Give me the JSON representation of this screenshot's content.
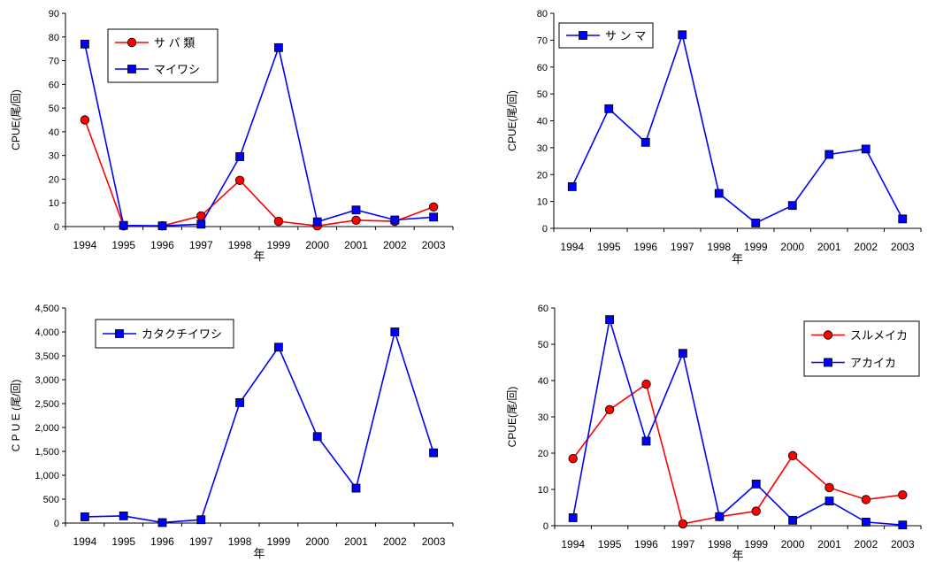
{
  "chart_data": [
    {
      "type": "line",
      "x": [
        "1994",
        "1995",
        "1996",
        "1997",
        "1998",
        "1999",
        "2000",
        "2001",
        "2002",
        "2003"
      ],
      "xlabel": "年",
      "ylabel": "CPUE(尾/回)",
      "ylim": [
        0,
        90
      ],
      "yticks": [
        "0",
        "10",
        "20",
        "30",
        "40",
        "50",
        "60",
        "70",
        "80",
        "90"
      ],
      "legend_position": "top-left",
      "series": [
        {
          "name": "サ バ 類",
          "color": "#ff0000",
          "marker": "circle",
          "values": [
            45,
            0.3,
            0.3,
            4.5,
            19.5,
            2.2,
            0.3,
            2.7,
            2.2,
            8.3
          ]
        },
        {
          "name": "マイワシ",
          "color": "#0000ff",
          "marker": "square",
          "values": [
            77,
            0.5,
            0.3,
            1,
            29.5,
            75.5,
            2,
            7,
            2.8,
            4
          ]
        }
      ]
    },
    {
      "type": "line",
      "x": [
        "1994",
        "1995",
        "1996",
        "1997",
        "1998",
        "1999",
        "2000",
        "2001",
        "2002",
        "2003"
      ],
      "xlabel": "年",
      "ylabel": "CPUE(尾/回)",
      "ylim": [
        0,
        80
      ],
      "yticks": [
        "0",
        "10",
        "20",
        "30",
        "40",
        "50",
        "60",
        "70",
        "80"
      ],
      "legend_position": "top-left",
      "series": [
        {
          "name": "サ ン マ",
          "color": "#0000ff",
          "marker": "square",
          "values": [
            15.5,
            44.5,
            32,
            72,
            13,
            2,
            8.5,
            27.5,
            29.5,
            3.5
          ]
        }
      ]
    },
    {
      "type": "line",
      "x": [
        "1994",
        "1995",
        "1996",
        "1997",
        "1998",
        "1999",
        "2000",
        "2001",
        "2002",
        "2003"
      ],
      "xlabel": "年",
      "ylabel": "C P U E (尾/回)",
      "ylim": [
        0,
        4500
      ],
      "yticks": [
        "0",
        "500",
        "1,000",
        "1,500",
        "2,000",
        "2,500",
        "3,000",
        "3,500",
        "4,000",
        "4,500"
      ],
      "legend_position": "top-left",
      "series": [
        {
          "name": "カタクチイワシ",
          "color": "#0000ff",
          "marker": "square",
          "values": [
            130,
            150,
            10,
            70,
            2520,
            3680,
            1810,
            730,
            4000,
            1470
          ]
        }
      ]
    },
    {
      "type": "line",
      "x": [
        "1994",
        "1995",
        "1996",
        "1997",
        "1998",
        "1999",
        "2000",
        "2001",
        "2002",
        "2003"
      ],
      "xlabel": "年",
      "ylabel": "CPUE(尾/回)",
      "ylim": [
        0,
        60
      ],
      "yticks": [
        "0",
        "10",
        "20",
        "30",
        "40",
        "50",
        "60"
      ],
      "legend_position": "top-right",
      "series": [
        {
          "name": "スルメイカ",
          "color": "#ff0000",
          "marker": "circle",
          "values": [
            18.5,
            32,
            39,
            0.5,
            2.5,
            4,
            19.3,
            10.5,
            7.2,
            8.5
          ]
        },
        {
          "name": "アカイカ",
          "color": "#0000ff",
          "marker": "square",
          "values": [
            2.2,
            56.8,
            23.3,
            47.5,
            2.5,
            11.5,
            1.5,
            6.8,
            1,
            0.2
          ]
        }
      ]
    }
  ]
}
